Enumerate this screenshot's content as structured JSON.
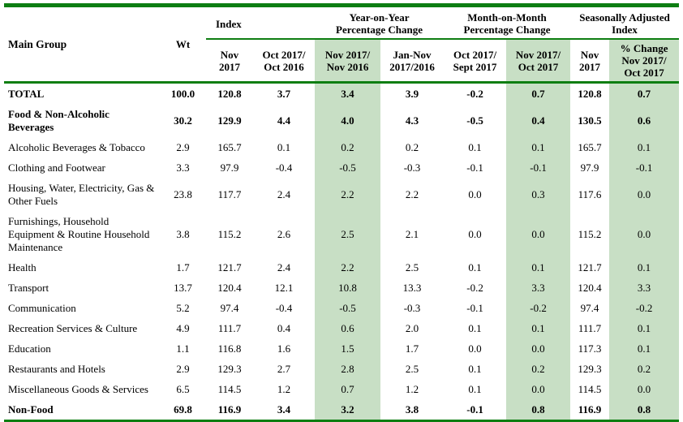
{
  "colors": {
    "border_green": "#0e7e12",
    "highlight_green": "#c8dfc5"
  },
  "header": {
    "main_group": "Main Group",
    "wt": "Wt",
    "groups": {
      "index": "Index",
      "yoy": "Year-on-Year\nPercentage Change",
      "mom": "Month-on-Month\nPercentage Change",
      "sa": "Seasonally Adjusted\nIndex"
    },
    "subcolumns": {
      "index_nov_2017": "Nov\n2017",
      "index_oct2017_oct2016": "Oct 2017/\nOct 2016",
      "yoy_nov2017_nov2016": "Nov 2017/\nNov 2016",
      "yoy_jannov_2017_2016": "Jan-Nov\n2017/2016",
      "mom_oct2017_sept2017": "Oct 2017/\nSept 2017",
      "mom_nov2017_oct2017": "Nov 2017/\nOct 2017",
      "sa_nov_2017": "Nov\n2017",
      "sa_pct_change": "% Change\nNov 2017/\nOct 2017"
    }
  },
  "highlight_value_columns": [
    3,
    6,
    8
  ],
  "rows": [
    {
      "main_group": "TOTAL",
      "bold": true,
      "values": [
        "100.0",
        "120.8",
        "3.7",
        "3.4",
        "3.9",
        "-0.2",
        "0.7",
        "120.8",
        "0.7"
      ]
    },
    {
      "main_group": "Food & Non-Alcoholic Beverages",
      "bold": true,
      "values": [
        "30.2",
        "129.9",
        "4.4",
        "4.0",
        "4.3",
        "-0.5",
        "0.4",
        "130.5",
        "0.6"
      ]
    },
    {
      "main_group": "Alcoholic Beverages & Tobacco",
      "bold": false,
      "values": [
        "2.9",
        "165.7",
        "0.1",
        "0.2",
        "0.2",
        "0.1",
        "0.1",
        "165.7",
        "0.1"
      ]
    },
    {
      "main_group": "Clothing and Footwear",
      "bold": false,
      "values": [
        "3.3",
        "97.9",
        "-0.4",
        "-0.5",
        "-0.3",
        "-0.1",
        "-0.1",
        "97.9",
        "-0.1"
      ]
    },
    {
      "main_group": "Housing, Water, Electricity, Gas & Other Fuels",
      "bold": false,
      "values": [
        "23.8",
        "117.7",
        "2.4",
        "2.2",
        "2.2",
        "0.0",
        "0.3",
        "117.6",
        "0.0"
      ]
    },
    {
      "main_group": "Furnishings, Household Equipment & Routine Household Maintenance",
      "bold": false,
      "values": [
        "3.8",
        "115.2",
        "2.6",
        "2.5",
        "2.1",
        "0.0",
        "0.0",
        "115.2",
        "0.0"
      ]
    },
    {
      "main_group": "Health",
      "bold": false,
      "values": [
        "1.7",
        "121.7",
        "2.4",
        "2.2",
        "2.5",
        "0.1",
        "0.1",
        "121.7",
        "0.1"
      ]
    },
    {
      "main_group": "Transport",
      "bold": false,
      "values": [
        "13.7",
        "120.4",
        "12.1",
        "10.8",
        "13.3",
        "-0.2",
        "3.3",
        "120.4",
        "3.3"
      ]
    },
    {
      "main_group": "Communication",
      "bold": false,
      "values": [
        "5.2",
        "97.4",
        "-0.4",
        "-0.5",
        "-0.3",
        "-0.1",
        "-0.2",
        "97.4",
        "-0.2"
      ]
    },
    {
      "main_group": "Recreation Services & Culture",
      "bold": false,
      "values": [
        "4.9",
        "111.7",
        "0.4",
        "0.6",
        "2.0",
        "0.1",
        "0.1",
        "111.7",
        "0.1"
      ]
    },
    {
      "main_group": "Education",
      "bold": false,
      "values": [
        "1.1",
        "116.8",
        "1.6",
        "1.5",
        "1.7",
        "0.0",
        "0.0",
        "117.3",
        "0.1"
      ]
    },
    {
      "main_group": "Restaurants and Hotels",
      "bold": false,
      "values": [
        "2.9",
        "129.3",
        "2.7",
        "2.8",
        "2.5",
        "0.1",
        "0.2",
        "129.3",
        "0.2"
      ]
    },
    {
      "main_group": "Miscellaneous Goods & Services",
      "bold": false,
      "values": [
        "6.5",
        "114.5",
        "1.2",
        "0.7",
        "1.2",
        "0.1",
        "0.0",
        "114.5",
        "0.0"
      ]
    },
    {
      "main_group": "Non-Food",
      "bold": true,
      "values": [
        "69.8",
        "116.9",
        "3.4",
        "3.2",
        "3.8",
        "-0.1",
        "0.8",
        "116.9",
        "0.8"
      ]
    }
  ]
}
